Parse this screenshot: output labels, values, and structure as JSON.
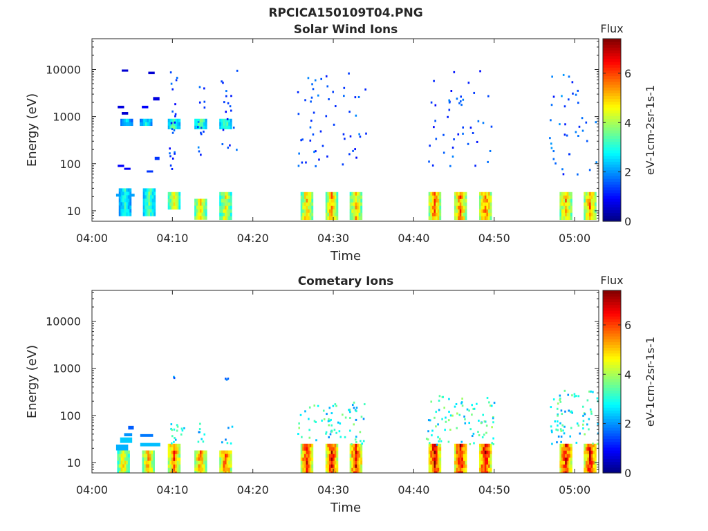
{
  "figure": {
    "title": "RPCICA150109T04.PNG"
  },
  "chart_data": [
    {
      "type": "heatmap",
      "title": "Solar Wind Ions",
      "xlabel": "Time",
      "ylabel": "Energy (eV)",
      "x_ticks": [
        "04:00",
        "04:10",
        "04:20",
        "04:30",
        "04:40",
        "04:50",
        "05:00"
      ],
      "x_tick_minutes": [
        0,
        10,
        20,
        30,
        40,
        50,
        60
      ],
      "xlim_minutes": [
        0,
        63
      ],
      "y_scale": "log",
      "y_ticks": [
        "10",
        "100",
        "1000",
        "10000"
      ],
      "y_tick_values": [
        10,
        100,
        1000,
        10000
      ],
      "ylim": [
        6,
        45000
      ],
      "colorbar": {
        "title": "Flux",
        "label": "eV-1cm-2sr-1s-1",
        "ticks": [
          "0",
          "2",
          "4",
          "6"
        ],
        "tick_values": [
          0,
          2,
          4,
          6
        ],
        "range": [
          0,
          7.4
        ]
      },
      "blobs": [
        {
          "t": 4.0,
          "e": [
            8,
            30
          ],
          "flux": 3.0
        },
        {
          "t": 7.0,
          "e": [
            8,
            30
          ],
          "flux": 3.5
        },
        {
          "t": 4.2,
          "e": [
            700,
            900
          ],
          "flux": 2.5
        },
        {
          "t": 6.6,
          "e": [
            700,
            900
          ],
          "flux": 2.8
        },
        {
          "t": 10.1,
          "e": [
            12,
            25
          ],
          "flux": 4.5
        },
        {
          "t": 13.4,
          "e": [
            7,
            18
          ],
          "flux": 4.8
        },
        {
          "t": 16.5,
          "e": [
            7,
            25
          ],
          "flux": 4.5
        },
        {
          "t": 10.1,
          "e": [
            550,
            900
          ],
          "flux": 3.5
        },
        {
          "t": 13.4,
          "e": [
            550,
            900
          ],
          "flux": 3.5
        },
        {
          "t": 16.5,
          "e": [
            550,
            900
          ],
          "flux": 3.5
        },
        {
          "t": 26.6,
          "e": [
            7,
            25
          ],
          "flux": 5.0
        },
        {
          "t": 29.7,
          "e": [
            7,
            25
          ],
          "flux": 5.2
        },
        {
          "t": 32.7,
          "e": [
            7,
            25
          ],
          "flux": 5.0
        },
        {
          "t": 42.5,
          "e": [
            7,
            25
          ],
          "flux": 5.6
        },
        {
          "t": 45.7,
          "e": [
            7,
            25
          ],
          "flux": 5.6
        },
        {
          "t": 48.8,
          "e": [
            7,
            25
          ],
          "flux": 5.6
        },
        {
          "t": 58.8,
          "e": [
            7,
            25
          ],
          "flux": 5.2
        },
        {
          "t": 61.8,
          "e": [
            7,
            25
          ],
          "flux": 5.4
        }
      ],
      "speckle": [
        {
          "t": [
            9.5,
            10.5
          ],
          "e": [
            60,
            10000
          ],
          "n": 22,
          "flux": 1.5
        },
        {
          "t": [
            13,
            14
          ],
          "e": [
            100,
            5000
          ],
          "n": 14,
          "flux": 1.6
        },
        {
          "t": [
            16,
            18
          ],
          "e": [
            200,
            10000
          ],
          "n": 18,
          "flux": 1.5
        },
        {
          "t": [
            25.5,
            34
          ],
          "e": [
            80,
            9000
          ],
          "n": 55,
          "flux": 1.6
        },
        {
          "t": [
            41.5,
            50
          ],
          "e": [
            80,
            10000
          ],
          "n": 45,
          "flux": 1.6
        },
        {
          "t": [
            56.8,
            63
          ],
          "e": [
            60,
            9000
          ],
          "n": 40,
          "flux": 1.8
        }
      ],
      "ion_bars": [
        {
          "t": [
            3.0,
            3.6
          ],
          "e": [
            20,
            23
          ],
          "flux": 2.1
        },
        {
          "t": [
            4.7,
            5.3
          ],
          "e": [
            20,
            23
          ],
          "flux": 2.1
        },
        {
          "t": [
            3.7,
            4.5
          ],
          "e": [
            1100,
            1250
          ],
          "flux": 0.6
        },
        {
          "t": [
            3.7,
            4.5
          ],
          "e": [
            9000,
            10000
          ],
          "flux": 0.6
        },
        {
          "t": [
            3.2,
            4.0
          ],
          "e": [
            1500,
            1700
          ],
          "flux": 0.7
        },
        {
          "t": [
            3.2,
            4.0
          ],
          "e": [
            85,
            95
          ],
          "flux": 0.9
        },
        {
          "t": [
            4.0,
            4.8
          ],
          "e": [
            75,
            82
          ],
          "flux": 0.9
        },
        {
          "t": [
            6.2,
            7.0
          ],
          "e": [
            1500,
            1700
          ],
          "flux": 0.9
        },
        {
          "t": [
            7.0,
            7.8
          ],
          "e": [
            8000,
            9000
          ],
          "flux": 0.6
        },
        {
          "t": [
            7.6,
            8.4
          ],
          "e": [
            2200,
            2600
          ],
          "flux": 0.7
        },
        {
          "t": [
            6.8,
            7.6
          ],
          "e": [
            65,
            72
          ],
          "flux": 1.3
        },
        {
          "t": [
            7.8,
            8.4
          ],
          "e": [
            120,
            140
          ],
          "flux": 1.3
        }
      ]
    },
    {
      "type": "heatmap",
      "title": "Cometary Ions",
      "xlabel": "Time",
      "ylabel": "Energy (eV)",
      "x_ticks": [
        "04:00",
        "04:10",
        "04:20",
        "04:30",
        "04:40",
        "04:50",
        "05:00"
      ],
      "x_tick_minutes": [
        0,
        10,
        20,
        30,
        40,
        50,
        60
      ],
      "xlim_minutes": [
        0,
        63
      ],
      "y_scale": "log",
      "y_ticks": [
        "10",
        "100",
        "1000",
        "10000"
      ],
      "y_tick_values": [
        10,
        100,
        1000,
        10000
      ],
      "ylim": [
        6,
        45000
      ],
      "colorbar": {
        "title": "Flux",
        "label": "eV-1cm-2sr-1s-1",
        "ticks": [
          "0",
          "2",
          "4",
          "6"
        ],
        "tick_values": [
          0,
          2,
          4,
          6
        ],
        "range": [
          0,
          7.4
        ]
      },
      "blobs": [
        {
          "t": 3.8,
          "e": [
            6,
            18
          ],
          "flux": 4.8
        },
        {
          "t": 6.9,
          "e": [
            6,
            18
          ],
          "flux": 5.2
        },
        {
          "t": 10.1,
          "e": [
            6,
            25
          ],
          "flux": 5.8
        },
        {
          "t": 13.4,
          "e": [
            6,
            18
          ],
          "flux": 5.6
        },
        {
          "t": 16.5,
          "e": [
            6,
            18
          ],
          "flux": 5.8
        },
        {
          "t": 26.6,
          "e": [
            6,
            25
          ],
          "flux": 6.3
        },
        {
          "t": 29.7,
          "e": [
            6,
            25
          ],
          "flux": 6.3
        },
        {
          "t": 32.7,
          "e": [
            6,
            25
          ],
          "flux": 6.3
        },
        {
          "t": 42.5,
          "e": [
            6,
            25
          ],
          "flux": 6.6
        },
        {
          "t": 45.7,
          "e": [
            6,
            25
          ],
          "flux": 6.6
        },
        {
          "t": 48.8,
          "e": [
            6,
            25
          ],
          "flux": 6.6
        },
        {
          "t": 58.8,
          "e": [
            6,
            25
          ],
          "flux": 6.3
        },
        {
          "t": 61.8,
          "e": [
            6,
            25
          ],
          "flux": 6.3
        }
      ],
      "speckle": [
        {
          "t": [
            9.5,
            11.5
          ],
          "e": [
            25,
            70
          ],
          "n": 16,
          "flux": 3.0
        },
        {
          "t": [
            13,
            14
          ],
          "e": [
            25,
            70
          ],
          "n": 8,
          "flux": 3.0
        },
        {
          "t": [
            16,
            17.5
          ],
          "e": [
            25,
            70
          ],
          "n": 6,
          "flux": 3.0
        },
        {
          "t": [
            25.5,
            34
          ],
          "e": [
            25,
            200
          ],
          "n": 70,
          "flux": 3.2
        },
        {
          "t": [
            41.5,
            50
          ],
          "e": [
            25,
            280
          ],
          "n": 85,
          "flux": 3.4
        },
        {
          "t": [
            56.8,
            63
          ],
          "e": [
            25,
            350
          ],
          "n": 75,
          "flux": 3.2
        },
        {
          "t": [
            10,
            10.3
          ],
          "e": [
            600,
            700
          ],
          "n": 2,
          "flux": 2.0
        },
        {
          "t": [
            16.5,
            17
          ],
          "e": [
            600,
            700
          ],
          "n": 3,
          "flux": 2.0
        }
      ],
      "ion_bars": [
        {
          "t": [
            3.0,
            4.5
          ],
          "e": [
            18,
            24
          ],
          "flux": 2.2
        },
        {
          "t": [
            3.5,
            5.0
          ],
          "e": [
            26,
            34
          ],
          "flux": 2.4
        },
        {
          "t": [
            4.0,
            5.0
          ],
          "e": [
            36,
            42
          ],
          "flux": 2.0
        },
        {
          "t": [
            4.5,
            5.2
          ],
          "e": [
            50,
            60
          ],
          "flux": 1.6
        },
        {
          "t": [
            6.0,
            8.5
          ],
          "e": [
            22,
            26
          ],
          "flux": 2.3
        },
        {
          "t": [
            6.0,
            7.6
          ],
          "e": [
            35,
            40
          ],
          "flux": 1.8
        }
      ]
    }
  ]
}
